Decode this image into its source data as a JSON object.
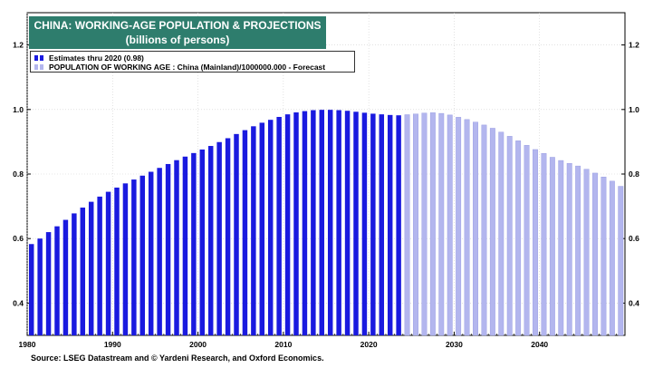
{
  "header": {
    "title_line1": "CHINA: WORKING-AGE POPULATION & PROJECTIONS",
    "title_line2": "(billions of persons)"
  },
  "legend": {
    "estimates": "Estimates thru 2020 (0.98)",
    "forecast": "POPULATION OF WORKING AGE : China (Mainland)/1000000.000 - Forecast"
  },
  "footer": {
    "source": "Source: LSEG Datastream and © Yardeni Research, and Oxford Economics."
  },
  "colors": {
    "estimate_bar": "#1a1adf",
    "forecast_bar": "#b3b6ee",
    "title_bg": "#2e7d6d"
  },
  "chart_data": {
    "type": "bar",
    "ylim": [
      0.3,
      1.3
    ],
    "xlim": [
      1980,
      2050
    ],
    "y_ticks": [
      "0.4",
      "0.6",
      "0.8",
      "1.0",
      "1.2"
    ],
    "x_ticks": [
      "1980",
      "1990",
      "2000",
      "2010",
      "2020",
      "2030",
      "2040"
    ],
    "grid": true,
    "legend_position": "top-left",
    "series": [
      {
        "name": "Estimates thru 2020 (0.98)",
        "x": [
          1980,
          1981,
          1982,
          1983,
          1984,
          1985,
          1986,
          1987,
          1988,
          1989,
          1990,
          1991,
          1992,
          1993,
          1994,
          1995,
          1996,
          1997,
          1998,
          1999,
          2000,
          2001,
          2002,
          2003,
          2004,
          2005,
          2006,
          2007,
          2008,
          2009,
          2010,
          2011,
          2012,
          2013,
          2014,
          2015,
          2016,
          2017,
          2018,
          2019,
          2020,
          2021,
          2022,
          2023
        ],
        "values": [
          0.583,
          0.6,
          0.62,
          0.638,
          0.658,
          0.678,
          0.696,
          0.714,
          0.73,
          0.745,
          0.758,
          0.771,
          0.783,
          0.795,
          0.807,
          0.819,
          0.831,
          0.843,
          0.854,
          0.865,
          0.876,
          0.887,
          0.899,
          0.911,
          0.924,
          0.936,
          0.948,
          0.959,
          0.968,
          0.977,
          0.985,
          0.991,
          0.995,
          0.998,
          0.999,
          0.999,
          0.998,
          0.996,
          0.993,
          0.99,
          0.987,
          0.985,
          0.983,
          0.982
        ]
      },
      {
        "name": "POPULATION OF WORKING AGE : China (Mainland)/1000000.000 - Forecast",
        "x": [
          2024,
          2025,
          2026,
          2027,
          2028,
          2029,
          2030,
          2031,
          2032,
          2033,
          2034,
          2035,
          2036,
          2037,
          2038,
          2039,
          2040,
          2041,
          2042,
          2043,
          2044,
          2045,
          2046,
          2047,
          2048,
          2049
        ],
        "values": [
          0.984,
          0.986,
          0.989,
          0.99,
          0.988,
          0.983,
          0.976,
          0.969,
          0.961,
          0.952,
          0.942,
          0.93,
          0.917,
          0.903,
          0.889,
          0.876,
          0.864,
          0.852,
          0.842,
          0.833,
          0.825,
          0.815,
          0.803,
          0.791,
          0.778,
          0.762
        ]
      }
    ]
  }
}
